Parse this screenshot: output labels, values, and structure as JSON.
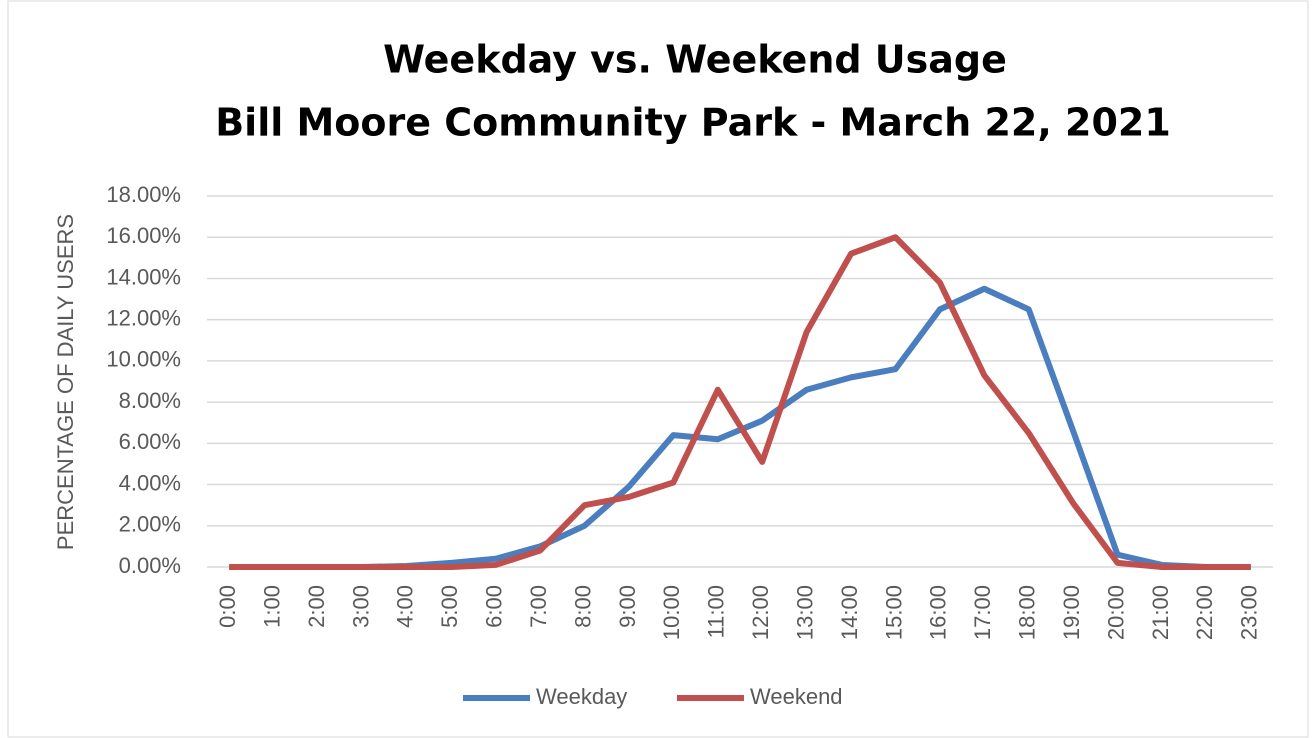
{
  "chart_data": {
    "type": "line",
    "title": [
      "Weekday vs. Weekend Usage",
      "Bill Moore Community Park - March 22, 2021"
    ],
    "y_label": "PERCENTAGE OF DAILY USERS",
    "categories": [
      "0:00",
      "1:00",
      "2:00",
      "3:00",
      "4:00",
      "5:00",
      "6:00",
      "7:00",
      "8:00",
      "9:00",
      "10:00",
      "11:00",
      "12:00",
      "13:00",
      "14:00",
      "15:00",
      "16:00",
      "17:00",
      "18:00",
      "19:00",
      "20:00",
      "21:00",
      "22:00",
      "23:00"
    ],
    "series": [
      {
        "name": "Weekday",
        "color": "#4a7ebf",
        "values": [
          0,
          0,
          0,
          0,
          0.05,
          0.2,
          0.4,
          1.0,
          2.0,
          3.9,
          6.4,
          6.2,
          7.1,
          8.6,
          9.2,
          9.6,
          12.5,
          13.5,
          12.5,
          6.6,
          0.6,
          0.1,
          0,
          0
        ]
      },
      {
        "name": "Weekend",
        "color": "#c0504d",
        "values": [
          0,
          0,
          0,
          0,
          0,
          0,
          0.1,
          0.8,
          3.0,
          3.4,
          4.1,
          8.6,
          5.1,
          11.4,
          15.2,
          16.0,
          13.8,
          9.3,
          6.5,
          3.1,
          0.2,
          0,
          0,
          0
        ]
      }
    ],
    "ylim": [
      0,
      18
    ],
    "yticks": [
      {
        "value": 0,
        "label": "0.00%"
      },
      {
        "value": 2,
        "label": "2.00%"
      },
      {
        "value": 4,
        "label": "4.00%"
      },
      {
        "value": 6,
        "label": "6.00%"
      },
      {
        "value": 8,
        "label": "8.00%"
      },
      {
        "value": 10,
        "label": "10.00%"
      },
      {
        "value": 12,
        "label": "12.00%"
      },
      {
        "value": 14,
        "label": "14.00%"
      },
      {
        "value": 16,
        "label": "16.00%"
      },
      {
        "value": 18,
        "label": "18.00%"
      }
    ],
    "grid": true,
    "legend": "bottom"
  }
}
